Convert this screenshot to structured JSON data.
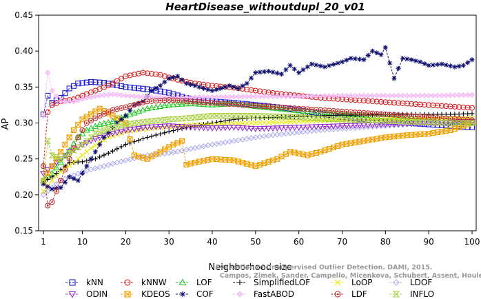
{
  "chart_data": {
    "type": "line",
    "title": "HeartDisease_withoutdupl_20_v01",
    "xlabel": "Neighborhood size",
    "ylabel": "AP",
    "xlim": [
      1,
      100
    ],
    "ylim": [
      0.15,
      0.45
    ],
    "xticks": [
      "1",
      "10",
      "20",
      "30",
      "40",
      "50",
      "60",
      "70",
      "80",
      "90",
      "100"
    ],
    "yticks": [
      "0.15",
      "0.20",
      "0.25",
      "0.30",
      "0.35",
      "0.40",
      "0.45"
    ],
    "grid": false,
    "legend_position": "bottom",
    "watermark": [
      "Evaluation of Unsupervised Outlier Detection. DAMI, 2015.",
      "Campos, Zimek, Sander, Campello, Micenkova, Schubert, Assent, Houle"
    ],
    "series": [
      {
        "name": "kNN",
        "color": "#1f1fd0",
        "marker": "square",
        "anchors": [
          [
            1,
            0.312
          ],
          [
            2,
            0.338
          ],
          [
            3,
            0.328
          ],
          [
            5,
            0.335
          ],
          [
            7,
            0.348
          ],
          [
            9,
            0.355
          ],
          [
            12,
            0.357
          ],
          [
            15,
            0.356
          ],
          [
            20,
            0.35
          ],
          [
            25,
            0.347
          ],
          [
            30,
            0.342
          ],
          [
            35,
            0.333
          ],
          [
            40,
            0.33
          ],
          [
            45,
            0.328
          ],
          [
            50,
            0.325
          ],
          [
            55,
            0.322
          ],
          [
            60,
            0.318
          ],
          [
            65,
            0.313
          ],
          [
            70,
            0.308
          ],
          [
            75,
            0.305
          ],
          [
            80,
            0.302
          ],
          [
            85,
            0.3
          ],
          [
            90,
            0.298
          ],
          [
            95,
            0.296
          ],
          [
            100,
            0.294
          ]
        ]
      },
      {
        "name": "kNNW",
        "color": "#d62020",
        "marker": "circle",
        "anchors": [
          [
            1,
            0.24
          ],
          [
            2,
            0.315
          ],
          [
            3,
            0.325
          ],
          [
            5,
            0.33
          ],
          [
            8,
            0.333
          ],
          [
            10,
            0.338
          ],
          [
            13,
            0.345
          ],
          [
            16,
            0.352
          ],
          [
            20,
            0.365
          ],
          [
            24,
            0.37
          ],
          [
            28,
            0.367
          ],
          [
            32,
            0.36
          ],
          [
            36,
            0.355
          ],
          [
            40,
            0.352
          ],
          [
            45,
            0.349
          ],
          [
            50,
            0.345
          ],
          [
            55,
            0.341
          ],
          [
            60,
            0.338
          ],
          [
            65,
            0.335
          ],
          [
            70,
            0.333
          ],
          [
            75,
            0.331
          ],
          [
            80,
            0.329
          ],
          [
            85,
            0.327
          ],
          [
            90,
            0.325
          ],
          [
            95,
            0.323
          ],
          [
            100,
            0.321
          ]
        ]
      },
      {
        "name": "LOF",
        "color": "#22cc22",
        "marker": "triangle-up",
        "anchors": [
          [
            1,
            0.22
          ],
          [
            3,
            0.23
          ],
          [
            5,
            0.245
          ],
          [
            7,
            0.262
          ],
          [
            9,
            0.28
          ],
          [
            11,
            0.29
          ],
          [
            14,
            0.298
          ],
          [
            17,
            0.302
          ],
          [
            20,
            0.31
          ],
          [
            25,
            0.32
          ],
          [
            30,
            0.325
          ],
          [
            35,
            0.327
          ],
          [
            40,
            0.325
          ],
          [
            45,
            0.327
          ],
          [
            50,
            0.323
          ],
          [
            55,
            0.32
          ],
          [
            60,
            0.317
          ],
          [
            65,
            0.315
          ],
          [
            70,
            0.313
          ],
          [
            75,
            0.311
          ],
          [
            80,
            0.309
          ],
          [
            85,
            0.307
          ],
          [
            90,
            0.305
          ],
          [
            95,
            0.303
          ],
          [
            100,
            0.301
          ]
        ]
      },
      {
        "name": "SimplifiedLOF",
        "color": "#000000",
        "marker": "plus",
        "anchors": [
          [
            1,
            0.218
          ],
          [
            3,
            0.225
          ],
          [
            5,
            0.235
          ],
          [
            7,
            0.245
          ],
          [
            10,
            0.246
          ],
          [
            13,
            0.25
          ],
          [
            16,
            0.258
          ],
          [
            20,
            0.27
          ],
          [
            25,
            0.28
          ],
          [
            30,
            0.288
          ],
          [
            35,
            0.295
          ],
          [
            40,
            0.3
          ],
          [
            45,
            0.305
          ],
          [
            50,
            0.307
          ],
          [
            55,
            0.308
          ],
          [
            60,
            0.309
          ],
          [
            65,
            0.31
          ],
          [
            70,
            0.311
          ],
          [
            75,
            0.311
          ],
          [
            80,
            0.312
          ],
          [
            85,
            0.312
          ],
          [
            90,
            0.312
          ],
          [
            95,
            0.312
          ],
          [
            100,
            0.313
          ]
        ]
      },
      {
        "name": "LoOP",
        "color": "#e8e800",
        "marker": "x",
        "anchors": [
          [
            1,
            0.205
          ],
          [
            3,
            0.22
          ],
          [
            5,
            0.232
          ],
          [
            8,
            0.245
          ],
          [
            12,
            0.265
          ],
          [
            16,
            0.28
          ],
          [
            20,
            0.288
          ],
          [
            25,
            0.292
          ],
          [
            30,
            0.295
          ],
          [
            35,
            0.297
          ],
          [
            40,
            0.298
          ],
          [
            50,
            0.3
          ],
          [
            60,
            0.302
          ],
          [
            70,
            0.304
          ],
          [
            80,
            0.305
          ],
          [
            90,
            0.306
          ],
          [
            100,
            0.307
          ]
        ]
      },
      {
        "name": "LDOF",
        "color": "#b0b0ee",
        "marker": "diamond",
        "anchors": [
          [
            1,
            0.2
          ],
          [
            3,
            0.21
          ],
          [
            5,
            0.22
          ],
          [
            10,
            0.232
          ],
          [
            15,
            0.24
          ],
          [
            20,
            0.248
          ],
          [
            25,
            0.255
          ],
          [
            30,
            0.258
          ],
          [
            35,
            0.264
          ],
          [
            40,
            0.27
          ],
          [
            45,
            0.275
          ],
          [
            50,
            0.28
          ],
          [
            55,
            0.284
          ],
          [
            60,
            0.287
          ],
          [
            65,
            0.29
          ],
          [
            70,
            0.292
          ],
          [
            75,
            0.294
          ],
          [
            80,
            0.296
          ],
          [
            85,
            0.298
          ],
          [
            90,
            0.3
          ],
          [
            95,
            0.301
          ],
          [
            100,
            0.302
          ]
        ]
      },
      {
        "name": "ODIN",
        "color": "#9a2ad0",
        "marker": "triangle-down",
        "anchors": [
          [
            1,
            0.23
          ],
          [
            3,
            0.24
          ],
          [
            5,
            0.25
          ],
          [
            7,
            0.26
          ],
          [
            10,
            0.27
          ],
          [
            13,
            0.278
          ],
          [
            16,
            0.284
          ],
          [
            20,
            0.29
          ],
          [
            25,
            0.294
          ],
          [
            30,
            0.296
          ],
          [
            35,
            0.294
          ],
          [
            40,
            0.293
          ],
          [
            45,
            0.294
          ],
          [
            50,
            0.292
          ],
          [
            55,
            0.293
          ],
          [
            60,
            0.294
          ],
          [
            70,
            0.296
          ],
          [
            80,
            0.298
          ],
          [
            90,
            0.3
          ],
          [
            100,
            0.302
          ]
        ]
      },
      {
        "name": "KDEOS",
        "color": "#f0a000",
        "marker": "square-x",
        "anchors": [
          [
            1,
            0.22
          ],
          [
            5,
            0.26
          ],
          [
            8,
            0.29
          ],
          [
            10,
            0.305
          ],
          [
            14,
            0.32
          ],
          [
            17,
            0.31
          ],
          [
            20,
            0.3
          ],
          [
            22,
            0.255
          ],
          [
            25,
            0.25
          ],
          [
            28,
            0.26
          ],
          [
            31,
            0.27
          ],
          [
            33,
            0.275
          ],
          [
            34,
            0.242
          ],
          [
            36,
            0.245
          ],
          [
            40,
            0.25
          ],
          [
            45,
            0.248
          ],
          [
            50,
            0.24
          ],
          [
            55,
            0.25
          ],
          [
            58,
            0.26
          ],
          [
            62,
            0.255
          ],
          [
            65,
            0.26
          ],
          [
            70,
            0.27
          ],
          [
            75,
            0.275
          ],
          [
            80,
            0.28
          ],
          [
            85,
            0.283
          ],
          [
            90,
            0.285
          ],
          [
            95,
            0.29
          ],
          [
            100,
            0.3
          ]
        ]
      },
      {
        "name": "COF",
        "color": "#101070",
        "marker": "asterisk",
        "anchors": [
          [
            1,
            0.215
          ],
          [
            3,
            0.208
          ],
          [
            5,
            0.21
          ],
          [
            7,
            0.225
          ],
          [
            9,
            0.22
          ],
          [
            11,
            0.24
          ],
          [
            13,
            0.26
          ],
          [
            15,
            0.28
          ],
          [
            18,
            0.3
          ],
          [
            20,
            0.31
          ],
          [
            22,
            0.325
          ],
          [
            24,
            0.33
          ],
          [
            26,
            0.345
          ],
          [
            28,
            0.352
          ],
          [
            30,
            0.362
          ],
          [
            32,
            0.365
          ],
          [
            34,
            0.355
          ],
          [
            36,
            0.352
          ],
          [
            38,
            0.348
          ],
          [
            40,
            0.345
          ],
          [
            42,
            0.348
          ],
          [
            44,
            0.352
          ],
          [
            46,
            0.348
          ],
          [
            48,
            0.355
          ],
          [
            50,
            0.37
          ],
          [
            53,
            0.372
          ],
          [
            56,
            0.368
          ],
          [
            58,
            0.38
          ],
          [
            60,
            0.37
          ],
          [
            63,
            0.382
          ],
          [
            66,
            0.378
          ],
          [
            70,
            0.385
          ],
          [
            72,
            0.39
          ],
          [
            75,
            0.388
          ],
          [
            77,
            0.4
          ],
          [
            79,
            0.395
          ],
          [
            80,
            0.405
          ],
          [
            82,
            0.362
          ],
          [
            84,
            0.39
          ],
          [
            86,
            0.388
          ],
          [
            88,
            0.385
          ],
          [
            90,
            0.38
          ],
          [
            93,
            0.382
          ],
          [
            96,
            0.378
          ],
          [
            98,
            0.38
          ],
          [
            100,
            0.388
          ]
        ]
      },
      {
        "name": "FastABOD",
        "color": "#f4b8f4",
        "marker": "diamond-filled",
        "anchors": [
          [
            1,
            0.31
          ],
          [
            2,
            0.37
          ],
          [
            3,
            0.345
          ],
          [
            5,
            0.33
          ],
          [
            8,
            0.33
          ],
          [
            11,
            0.335
          ],
          [
            14,
            0.338
          ],
          [
            17,
            0.34
          ],
          [
            20,
            0.338
          ],
          [
            25,
            0.336
          ],
          [
            30,
            0.335
          ],
          [
            40,
            0.336
          ],
          [
            50,
            0.337
          ],
          [
            60,
            0.337
          ],
          [
            70,
            0.338
          ],
          [
            80,
            0.338
          ],
          [
            90,
            0.338
          ],
          [
            100,
            0.339
          ]
        ]
      },
      {
        "name": "LDF",
        "color": "#c03030",
        "marker": "circle-filled",
        "anchors": [
          [
            1,
            0.24
          ],
          [
            2,
            0.185
          ],
          [
            3,
            0.19
          ],
          [
            5,
            0.22
          ],
          [
            7,
            0.25
          ],
          [
            9,
            0.28
          ],
          [
            11,
            0.3
          ],
          [
            14,
            0.31
          ],
          [
            17,
            0.318
          ],
          [
            20,
            0.322
          ],
          [
            25,
            0.33
          ],
          [
            30,
            0.332
          ],
          [
            35,
            0.33
          ],
          [
            40,
            0.328
          ],
          [
            45,
            0.326
          ],
          [
            50,
            0.324
          ],
          [
            55,
            0.322
          ],
          [
            60,
            0.32
          ],
          [
            65,
            0.318
          ],
          [
            70,
            0.316
          ],
          [
            75,
            0.314
          ],
          [
            80,
            0.312
          ],
          [
            85,
            0.31
          ],
          [
            90,
            0.308
          ],
          [
            95,
            0.306
          ],
          [
            100,
            0.304
          ]
        ]
      },
      {
        "name": "INFLO",
        "color": "#a8d040",
        "marker": "hourglass",
        "anchors": [
          [
            1,
            0.22
          ],
          [
            2,
            0.275
          ],
          [
            3,
            0.255
          ],
          [
            5,
            0.25
          ],
          [
            7,
            0.258
          ],
          [
            10,
            0.27
          ],
          [
            13,
            0.285
          ],
          [
            16,
            0.292
          ],
          [
            20,
            0.298
          ],
          [
            25,
            0.302
          ],
          [
            30,
            0.305
          ],
          [
            35,
            0.307
          ],
          [
            40,
            0.31
          ],
          [
            45,
            0.31
          ],
          [
            50,
            0.31
          ],
          [
            55,
            0.309
          ],
          [
            60,
            0.308
          ],
          [
            65,
            0.306
          ],
          [
            70,
            0.305
          ],
          [
            75,
            0.304
          ],
          [
            80,
            0.303
          ],
          [
            85,
            0.302
          ],
          [
            90,
            0.301
          ],
          [
            95,
            0.3
          ],
          [
            100,
            0.3
          ]
        ]
      }
    ]
  }
}
